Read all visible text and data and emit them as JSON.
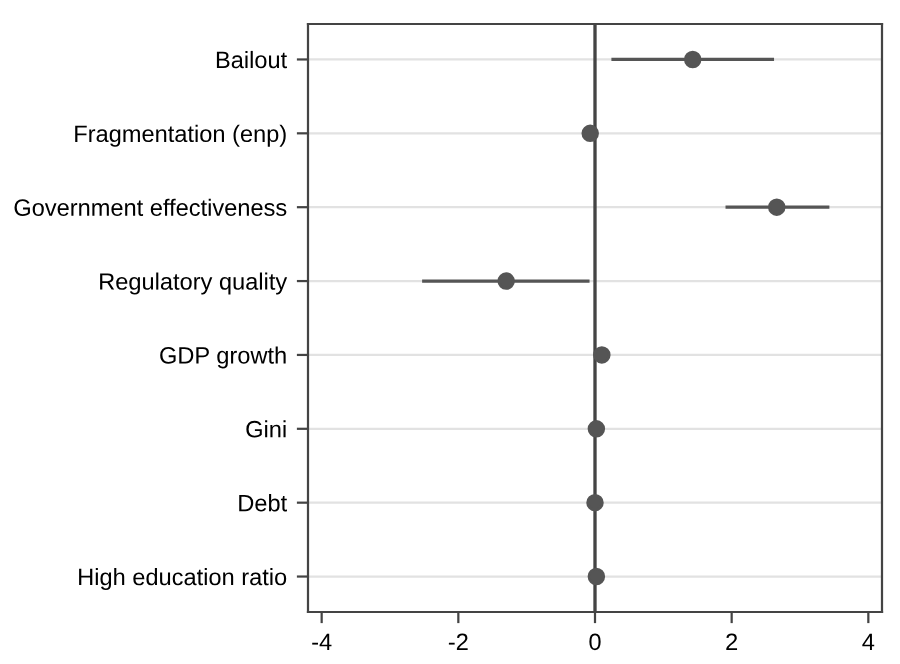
{
  "chart_data": {
    "type": "scatter",
    "orientation": "horizontal",
    "categories": [
      "Bailout",
      "Fragmentation (enp)",
      "Government effectiveness",
      "Regulatory quality",
      "GDP growth",
      "Gini",
      "Debt",
      "High education ratio"
    ],
    "values": [
      1.43,
      -0.07,
      2.66,
      -1.3,
      0.1,
      0.02,
      0.0,
      0.02
    ],
    "errors": [
      [
        0.24,
        2.62
      ],
      null,
      [
        1.91,
        3.43
      ],
      [
        -2.53,
        -0.08
      ],
      null,
      null,
      null,
      null
    ],
    "color": "#555555",
    "marker": "circle",
    "xlim": [
      -4.2,
      4.2
    ],
    "xticks": [
      {
        "value": -4,
        "label": "-4"
      },
      {
        "value": -2,
        "label": "-2"
      },
      0,
      2,
      4
    ],
    "ref_lines": [
      {
        "axis": "x",
        "value": 0,
        "color": "#444444"
      }
    ],
    "grid": "y",
    "legend": false
  }
}
